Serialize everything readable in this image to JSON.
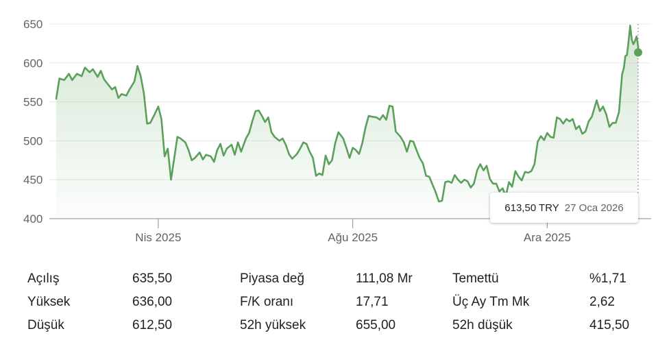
{
  "chart_data": {
    "type": "area",
    "y_ticks": [
      400,
      450,
      500,
      550,
      600,
      650
    ],
    "y_tick_labels": [
      "400",
      "450",
      "500",
      "550",
      "600",
      "650"
    ],
    "ylim": [
      400,
      650
    ],
    "x_ticks": [
      {
        "label": "Nis 2025",
        "date": "2025-04-01"
      },
      {
        "label": "Ağu 2025",
        "date": "2025-08-01"
      },
      {
        "label": "Ara 2025",
        "date": "2025-12-01"
      }
    ],
    "xlim": [
      "2025-01-27",
      "2026-01-27"
    ],
    "grid": true,
    "line_color": "#5aa05a",
    "series": [
      {
        "points": [
          [
            "2025-01-27",
            554
          ],
          [
            "2025-01-29",
            580
          ],
          [
            "2025-02-01",
            578
          ],
          [
            "2025-02-04",
            586
          ],
          [
            "2025-02-06",
            578
          ],
          [
            "2025-02-09",
            586
          ],
          [
            "2025-02-12",
            583
          ],
          [
            "2025-02-14",
            594
          ],
          [
            "2025-02-17",
            588
          ],
          [
            "2025-02-19",
            592
          ],
          [
            "2025-02-22",
            582
          ],
          [
            "2025-02-24",
            590
          ],
          [
            "2025-02-26",
            579
          ],
          [
            "2025-03-01",
            571
          ],
          [
            "2025-03-03",
            566
          ],
          [
            "2025-03-05",
            569
          ],
          [
            "2025-03-07",
            555
          ],
          [
            "2025-03-09",
            560
          ],
          [
            "2025-03-12",
            558
          ],
          [
            "2025-03-14",
            566
          ],
          [
            "2025-03-17",
            576
          ],
          [
            "2025-03-19",
            596
          ],
          [
            "2025-03-21",
            583
          ],
          [
            "2025-03-23",
            561
          ],
          [
            "2025-03-25",
            522
          ],
          [
            "2025-03-27",
            523
          ],
          [
            "2025-03-30",
            535
          ],
          [
            "2025-04-01",
            544
          ],
          [
            "2025-04-03",
            528
          ],
          [
            "2025-04-05",
            480
          ],
          [
            "2025-04-07",
            490
          ],
          [
            "2025-04-09",
            450
          ],
          [
            "2025-04-11",
            477
          ],
          [
            "2025-04-13",
            505
          ],
          [
            "2025-04-15",
            503
          ],
          [
            "2025-04-18",
            498
          ],
          [
            "2025-04-20",
            488
          ],
          [
            "2025-04-22",
            475
          ],
          [
            "2025-04-24",
            478
          ],
          [
            "2025-04-27",
            485
          ],
          [
            "2025-04-29",
            476
          ],
          [
            "2025-05-01",
            482
          ],
          [
            "2025-05-04",
            480
          ],
          [
            "2025-05-06",
            473
          ],
          [
            "2025-05-08",
            488
          ],
          [
            "2025-05-10",
            496
          ],
          [
            "2025-05-12",
            481
          ],
          [
            "2025-05-14",
            490
          ],
          [
            "2025-05-17",
            495
          ],
          [
            "2025-05-19",
            482
          ],
          [
            "2025-05-21",
            498
          ],
          [
            "2025-05-23",
            486
          ],
          [
            "2025-05-26",
            503
          ],
          [
            "2025-05-28",
            510
          ],
          [
            "2025-05-30",
            525
          ],
          [
            "2025-06-01",
            538
          ],
          [
            "2025-06-03",
            539
          ],
          [
            "2025-06-05",
            532
          ],
          [
            "2025-06-07",
            524
          ],
          [
            "2025-06-09",
            530
          ],
          [
            "2025-06-11",
            511
          ],
          [
            "2025-06-13",
            505
          ],
          [
            "2025-06-16",
            500
          ],
          [
            "2025-06-18",
            503
          ],
          [
            "2025-06-20",
            495
          ],
          [
            "2025-06-22",
            483
          ],
          [
            "2025-06-24",
            477
          ],
          [
            "2025-06-27",
            483
          ],
          [
            "2025-06-29",
            490
          ],
          [
            "2025-07-01",
            498
          ],
          [
            "2025-07-03",
            496
          ],
          [
            "2025-07-05",
            486
          ],
          [
            "2025-07-07",
            478
          ],
          [
            "2025-07-09",
            455
          ],
          [
            "2025-07-11",
            458
          ],
          [
            "2025-07-13",
            456
          ],
          [
            "2025-07-15",
            481
          ],
          [
            "2025-07-17",
            470
          ],
          [
            "2025-07-19",
            475
          ],
          [
            "2025-07-21",
            497
          ],
          [
            "2025-07-23",
            511
          ],
          [
            "2025-07-26",
            503
          ],
          [
            "2025-07-28",
            491
          ],
          [
            "2025-07-30",
            478
          ],
          [
            "2025-08-01",
            491
          ],
          [
            "2025-08-03",
            488
          ],
          [
            "2025-08-05",
            483
          ],
          [
            "2025-08-07",
            497
          ],
          [
            "2025-08-09",
            517
          ],
          [
            "2025-08-11",
            532
          ],
          [
            "2025-08-13",
            531
          ],
          [
            "2025-08-16",
            530
          ],
          [
            "2025-08-18",
            527
          ],
          [
            "2025-08-20",
            533
          ],
          [
            "2025-08-22",
            527
          ],
          [
            "2025-08-24",
            545
          ],
          [
            "2025-08-26",
            544
          ],
          [
            "2025-08-28",
            512
          ],
          [
            "2025-08-31",
            505
          ],
          [
            "2025-09-02",
            498
          ],
          [
            "2025-09-04",
            486
          ],
          [
            "2025-09-06",
            500
          ],
          [
            "2025-09-08",
            499
          ],
          [
            "2025-09-10",
            488
          ],
          [
            "2025-09-12",
            478
          ],
          [
            "2025-09-14",
            471
          ],
          [
            "2025-09-16",
            455
          ],
          [
            "2025-09-18",
            454
          ],
          [
            "2025-09-20",
            444
          ],
          [
            "2025-09-22",
            434
          ],
          [
            "2025-09-24",
            422
          ],
          [
            "2025-09-26",
            423
          ],
          [
            "2025-09-28",
            447
          ],
          [
            "2025-09-30",
            448
          ],
          [
            "2025-10-02",
            446
          ],
          [
            "2025-10-04",
            456
          ],
          [
            "2025-10-06",
            450
          ],
          [
            "2025-10-08",
            446
          ],
          [
            "2025-10-10",
            450
          ],
          [
            "2025-10-12",
            448
          ],
          [
            "2025-10-14",
            440
          ],
          [
            "2025-10-16",
            445
          ],
          [
            "2025-10-18",
            462
          ],
          [
            "2025-10-20",
            470
          ],
          [
            "2025-10-22",
            462
          ],
          [
            "2025-10-24",
            468
          ],
          [
            "2025-10-26",
            451
          ],
          [
            "2025-10-28",
            445
          ],
          [
            "2025-10-30",
            445
          ],
          [
            "2025-11-01",
            435
          ],
          [
            "2025-11-03",
            439
          ],
          [
            "2025-11-05",
            429
          ],
          [
            "2025-11-07",
            447
          ],
          [
            "2025-11-09",
            441
          ],
          [
            "2025-11-11",
            461
          ],
          [
            "2025-11-13",
            454
          ],
          [
            "2025-11-15",
            449
          ],
          [
            "2025-11-17",
            460
          ],
          [
            "2025-11-19",
            459
          ],
          [
            "2025-11-21",
            461
          ],
          [
            "2025-11-23",
            470
          ],
          [
            "2025-11-25",
            499
          ],
          [
            "2025-11-27",
            506
          ],
          [
            "2025-11-29",
            501
          ],
          [
            "2025-12-01",
            510
          ],
          [
            "2025-12-03",
            505
          ],
          [
            "2025-12-05",
            504
          ],
          [
            "2025-12-07",
            530
          ],
          [
            "2025-12-09",
            528
          ],
          [
            "2025-12-11",
            522
          ],
          [
            "2025-12-13",
            528
          ],
          [
            "2025-12-15",
            525
          ],
          [
            "2025-12-17",
            528
          ],
          [
            "2025-12-19",
            515
          ],
          [
            "2025-12-21",
            519
          ],
          [
            "2025-12-23",
            509
          ],
          [
            "2025-12-25",
            512
          ],
          [
            "2025-12-27",
            525
          ],
          [
            "2025-12-29",
            531
          ],
          [
            "2025-12-31",
            545
          ],
          [
            "2026-01-01",
            552
          ],
          [
            "2026-01-03",
            538
          ],
          [
            "2026-01-05",
            544
          ],
          [
            "2026-01-07",
            534
          ],
          [
            "2026-01-09",
            518
          ],
          [
            "2026-01-11",
            523
          ],
          [
            "2026-01-13",
            523
          ],
          [
            "2026-01-15",
            537
          ],
          [
            "2026-01-16",
            562
          ],
          [
            "2026-01-17",
            586
          ],
          [
            "2026-01-18",
            593
          ],
          [
            "2026-01-19",
            609
          ],
          [
            "2026-01-20",
            610
          ],
          [
            "2026-01-21",
            627
          ],
          [
            "2026-01-22",
            648
          ],
          [
            "2026-01-23",
            630
          ],
          [
            "2026-01-24",
            624
          ],
          [
            "2026-01-25",
            628
          ],
          [
            "2026-01-26",
            634
          ],
          [
            "2026-01-27",
            622
          ],
          [
            "2026-01-27",
            613.5
          ]
        ]
      }
    ],
    "highlight": {
      "date": "2026-01-27",
      "value": 613.5
    }
  },
  "tooltip": {
    "value": "613,50 TRY",
    "date": "27 Oca 2026"
  },
  "stats": [
    [
      {
        "label": "Açılış",
        "value": "635,50"
      },
      {
        "label": "Piyasa değ",
        "value": "111,08 Mr"
      },
      {
        "label": "Temettü",
        "value": "%1,71"
      }
    ],
    [
      {
        "label": "Yüksek",
        "value": "636,00"
      },
      {
        "label": "F/K oranı",
        "value": "17,71"
      },
      {
        "label": "Üç Ay Tm Mk",
        "value": "2,62"
      }
    ],
    [
      {
        "label": "Düşük",
        "value": "612,50"
      },
      {
        "label": "52h yüksek",
        "value": "655,00"
      },
      {
        "label": "52h düşük",
        "value": "415,50"
      }
    ]
  ]
}
